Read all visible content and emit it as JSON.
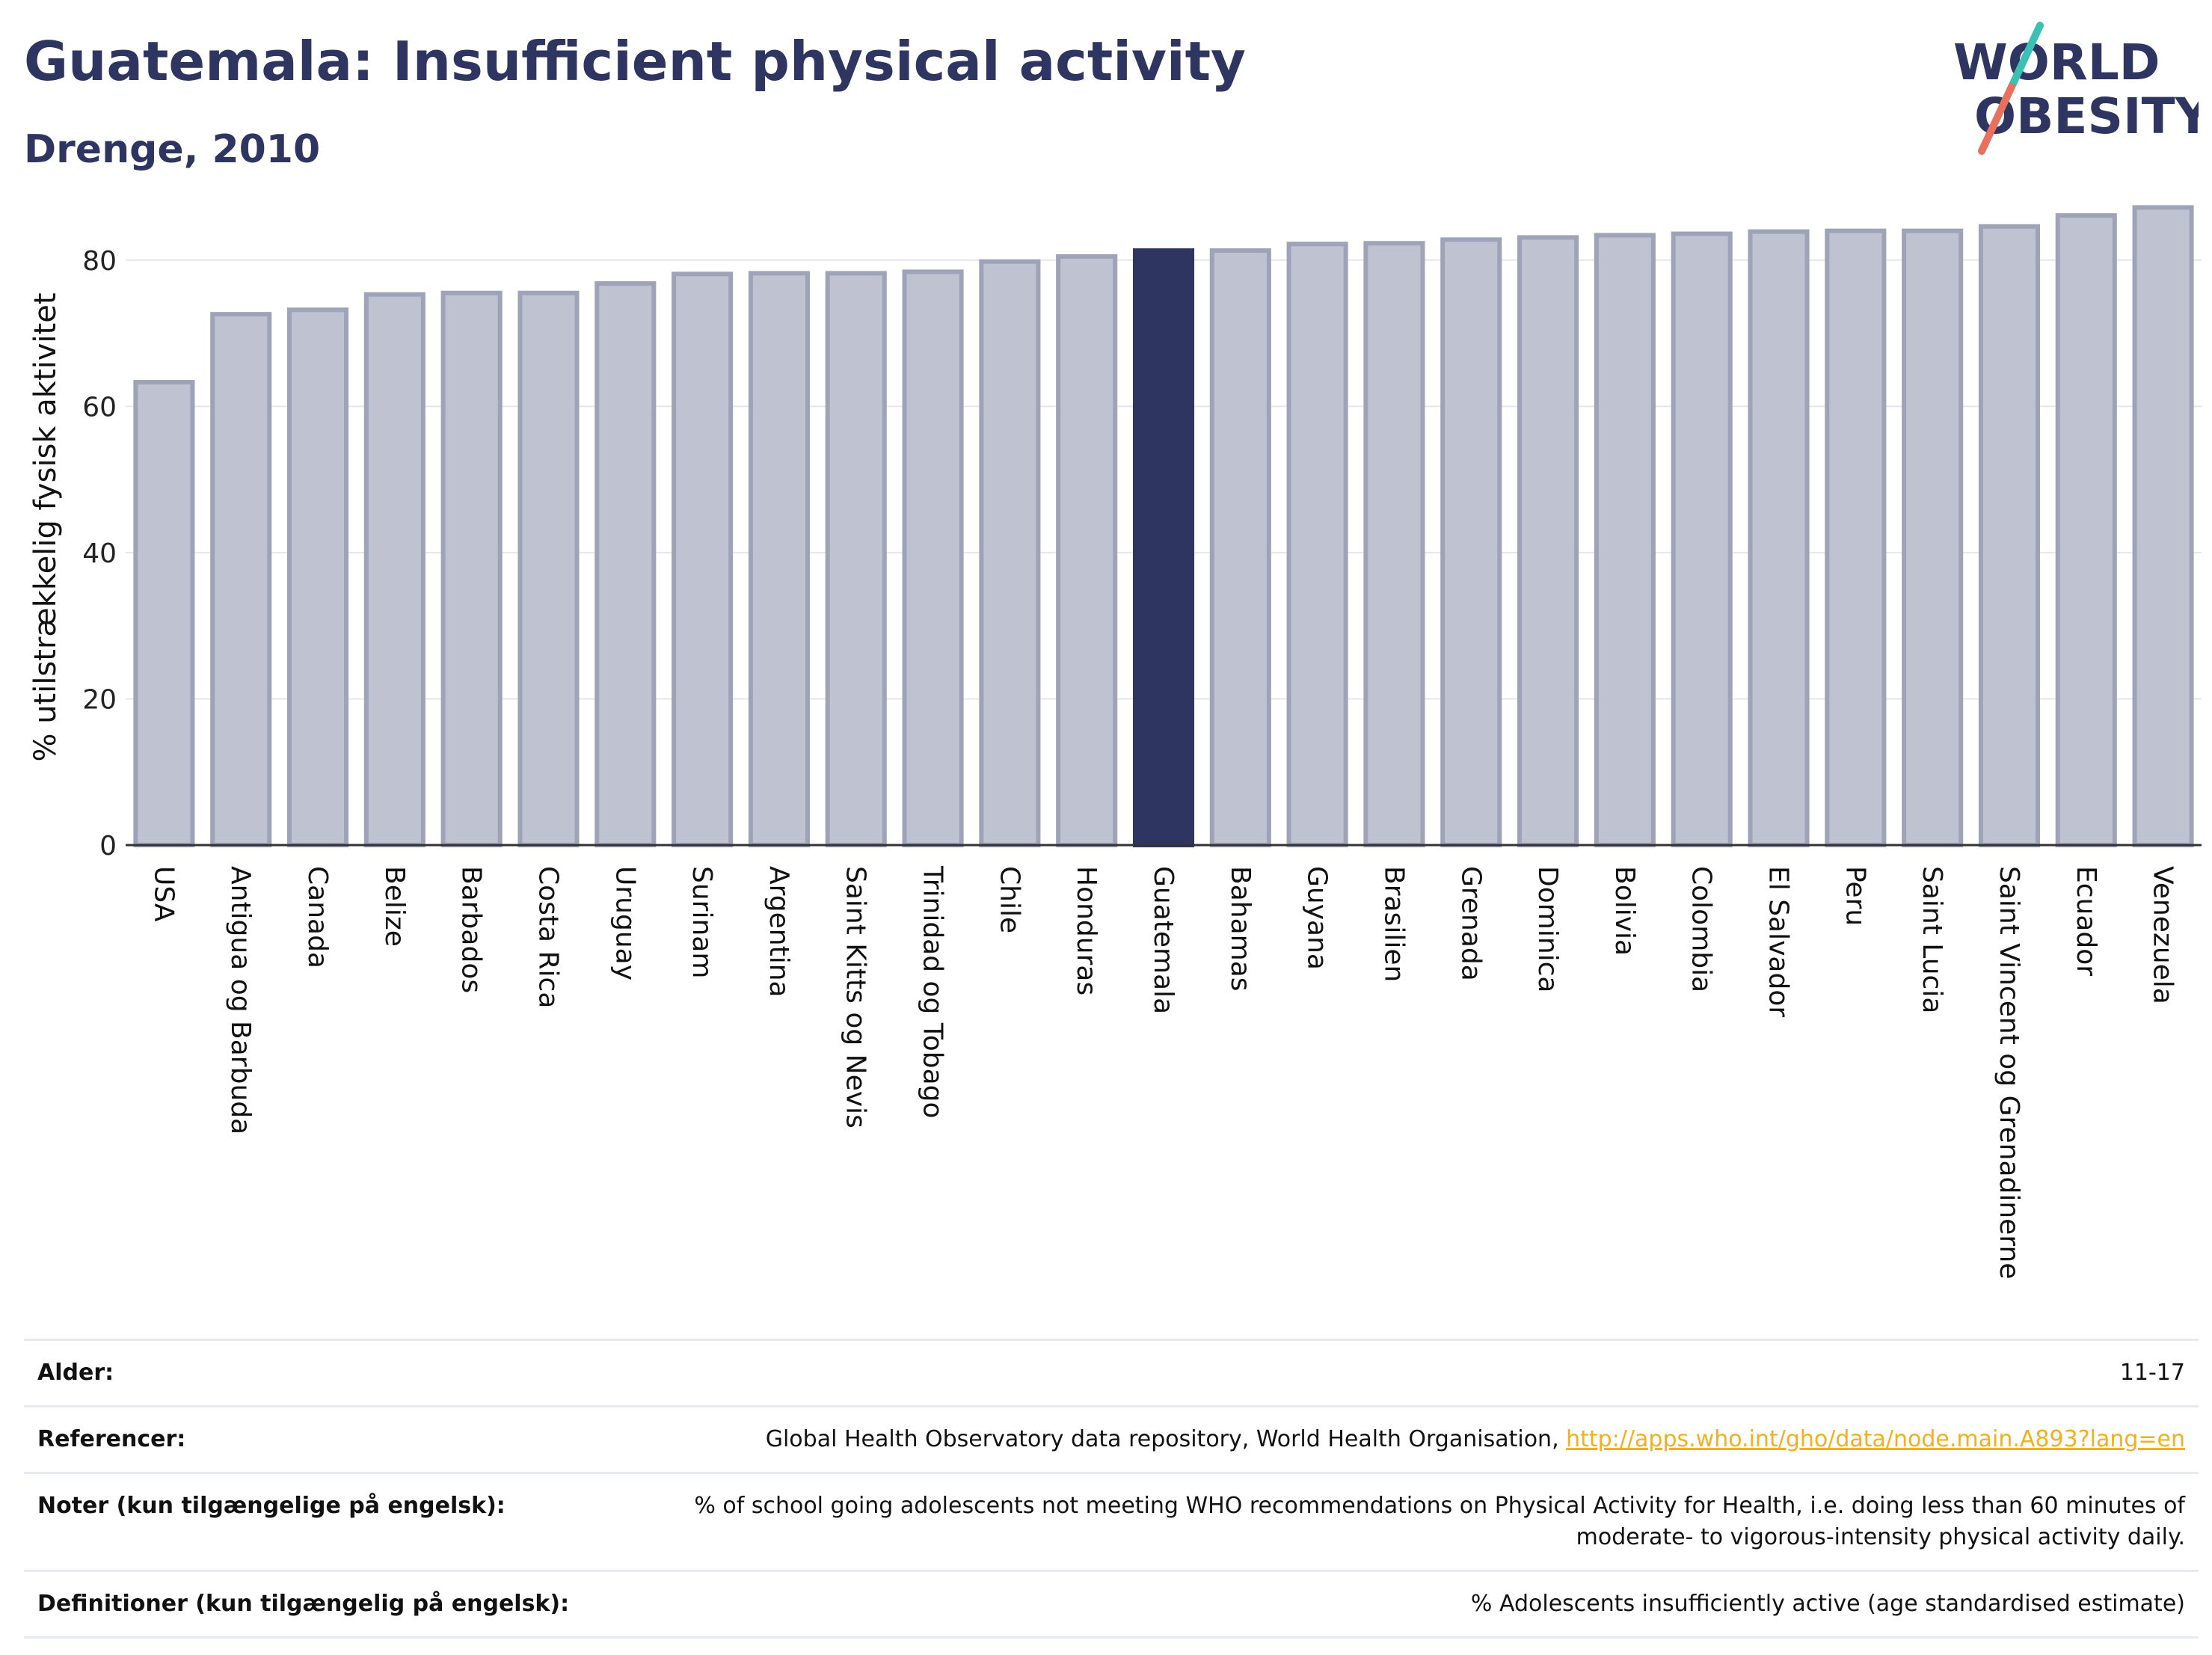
{
  "header": {
    "title": "Guatemala: Insufficient physical activity",
    "subtitle": "Drenge, 2010"
  },
  "logo": {
    "line1": "WORLD",
    "line2": "OBESITY"
  },
  "colors": {
    "title": "#2d3560",
    "bar": "#bfc3d1",
    "bar_border": "#9ea3b8",
    "highlight": "#2d3560",
    "logo_slash_top": "#3cc0b4",
    "logo_slash_bottom": "#e8705e",
    "link": "#f2b01e"
  },
  "chart_data": {
    "type": "bar",
    "ylabel": "% utilstrækkelig fysisk aktivitet",
    "ylim": [
      0,
      90
    ],
    "yticks": [
      0,
      20,
      40,
      60,
      80
    ],
    "grid": true,
    "highlight": "Guatemala",
    "categories": [
      "USA",
      "Antigua og Barbuda",
      "Canada",
      "Belize",
      "Barbados",
      "Costa Rica",
      "Uruguay",
      "Surinam",
      "Argentina",
      "Saint Kitts og Nevis",
      "Trinidad og Tobago",
      "Chile",
      "Honduras",
      "Guatemala",
      "Bahamas",
      "Guyana",
      "Brasilien",
      "Grenada",
      "Dominica",
      "Bolivia",
      "Colombia",
      "El Salvador",
      "Peru",
      "Saint Lucia",
      "Saint Vincent og Grenadinerne",
      "Ecuador",
      "Venezuela"
    ],
    "values": [
      63.3,
      72.6,
      73.2,
      75.3,
      75.5,
      75.5,
      76.8,
      78.1,
      78.2,
      78.2,
      78.4,
      79.8,
      80.5,
      81.3,
      81.3,
      82.2,
      82.3,
      82.8,
      83.1,
      83.4,
      83.6,
      83.9,
      84.0,
      84.0,
      84.6,
      86.1,
      87.2
    ]
  },
  "info": [
    {
      "key": "Alder:",
      "value": "11-17"
    },
    {
      "key": "Referencer:",
      "value": "Global Health Observatory data repository, World Health Organisation, ",
      "link": "http://apps.who.int/gho/data/node.main.A893?lang=en"
    },
    {
      "key": "Noter (kun tilgængelige på engelsk):",
      "value": "% of school going adolescents not meeting WHO recommendations on Physical Activity for Health, i.e. doing less than 60 minutes of moderate- to vigorous-intensity physical activity daily."
    },
    {
      "key": "Definitioner (kun tilgængelig på engelsk):",
      "value": "% Adolescents insufficiently active (age standardised estimate)"
    }
  ]
}
